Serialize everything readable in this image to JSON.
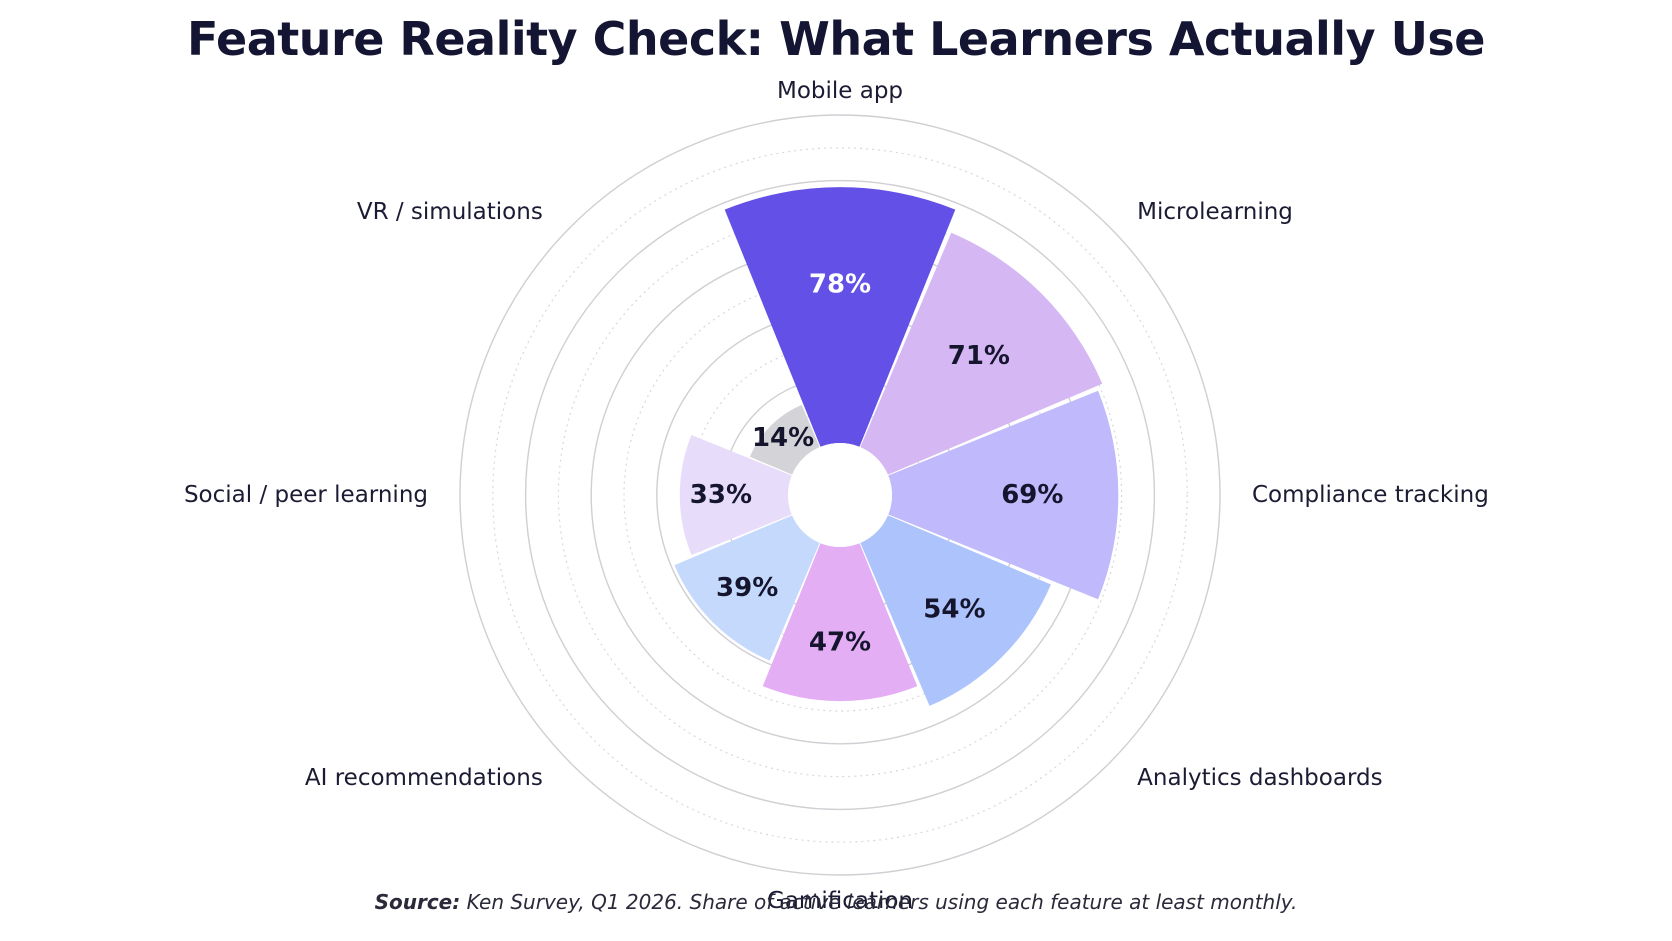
{
  "chart_data": {
    "type": "polar-bar",
    "title": "Feature Reality Check: What Learners Actually Use",
    "source_label": "Source:",
    "source_text": "Ken Survey, Q1 2026. Share of active learners using each feature at least monthly.",
    "value_suffix": "%",
    "rmax": 100,
    "grid": true,
    "categories": [
      "Mobile app",
      "Microlearning",
      "Compliance tracking",
      "Analytics dashboards",
      "Gamification",
      "AI recommendations",
      "Social / peer learning",
      "VR / simulations"
    ],
    "values": [
      78,
      71,
      69,
      54,
      47,
      39,
      33,
      14
    ],
    "colors": [
      "#6350e6",
      "#d4b7f3",
      "#c0b9fb",
      "#adc3fb",
      "#e4aef5",
      "#c5d9fc",
      "#e8dcfb",
      "#d4d4d8"
    ],
    "label_colors": [
      "#ffffff",
      "#15152e",
      "#15152e",
      "#15152e",
      "#15152e",
      "#15152e",
      "#15152e",
      "#15152e"
    ]
  }
}
